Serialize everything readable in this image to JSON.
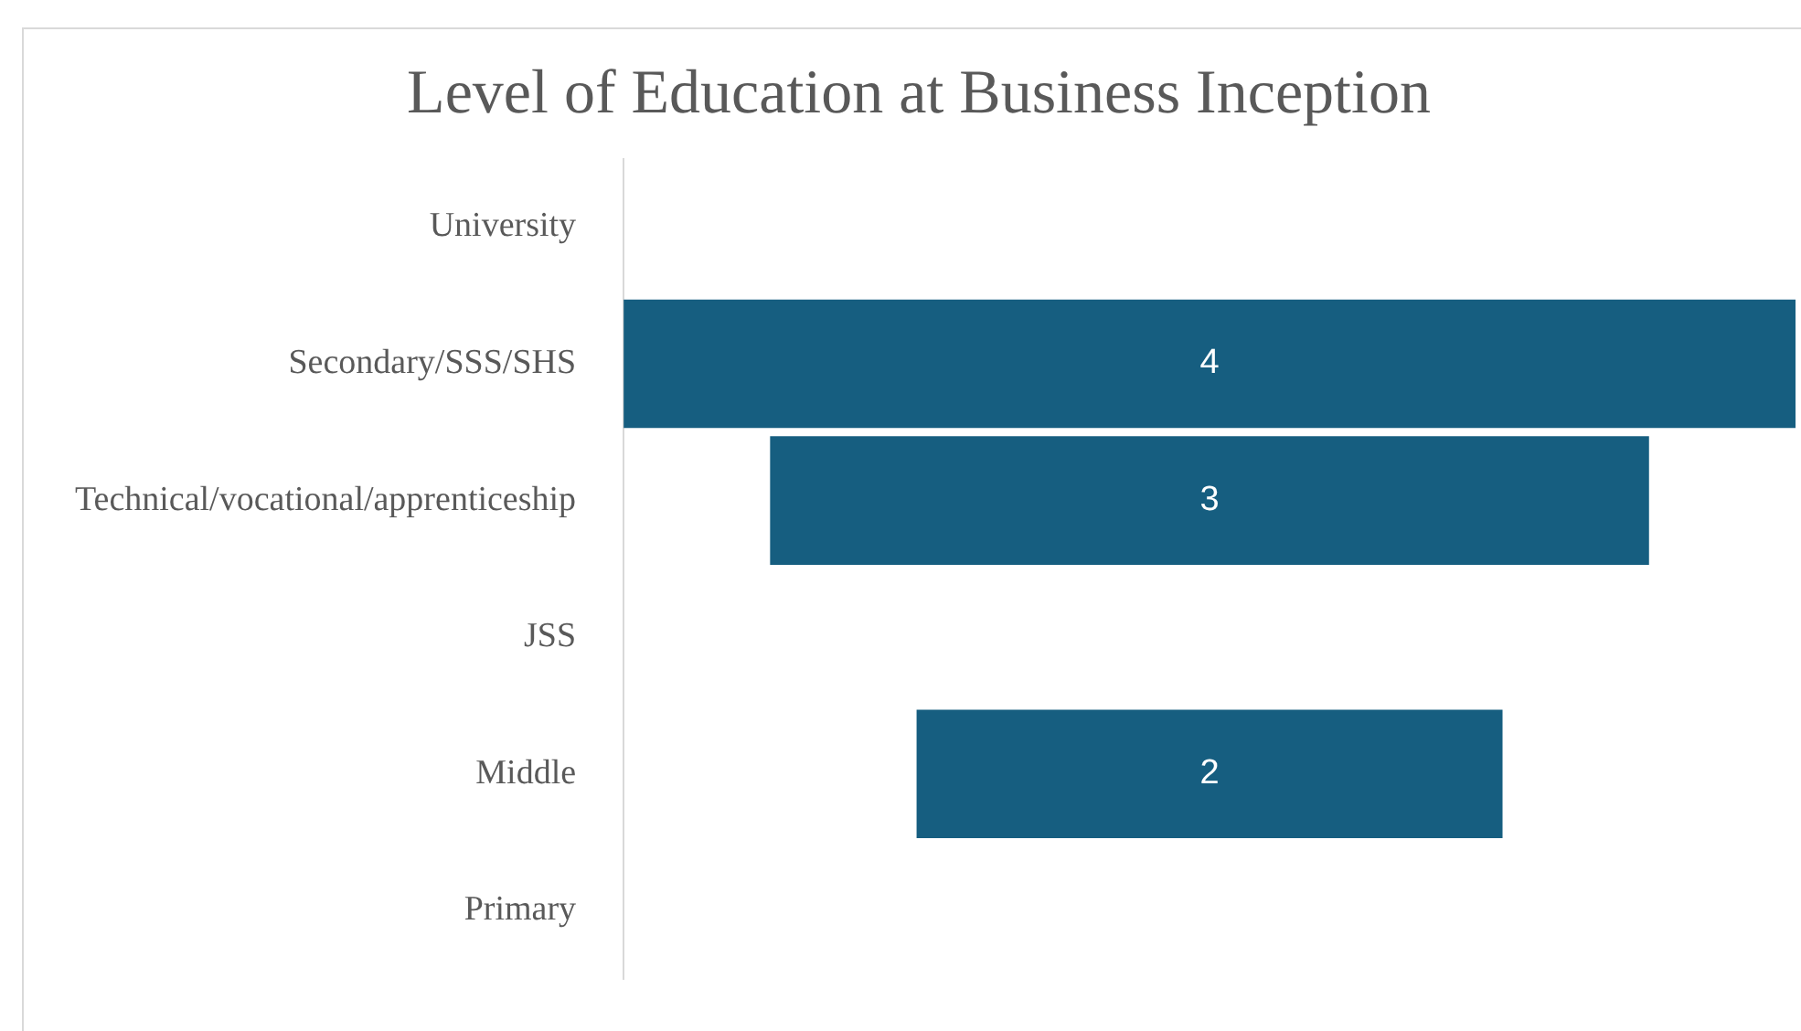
{
  "chart_data": {
    "type": "other",
    "title": "Level of Education at Business Inception",
    "categories": [
      "University",
      "Secondary/SSS/SHS",
      "Technical/vocational/apprenticeship",
      "JSS",
      "Middle",
      "Primary"
    ],
    "values": [
      null,
      4,
      3,
      null,
      2,
      null
    ],
    "color": "#165e80",
    "data_labels": true
  }
}
